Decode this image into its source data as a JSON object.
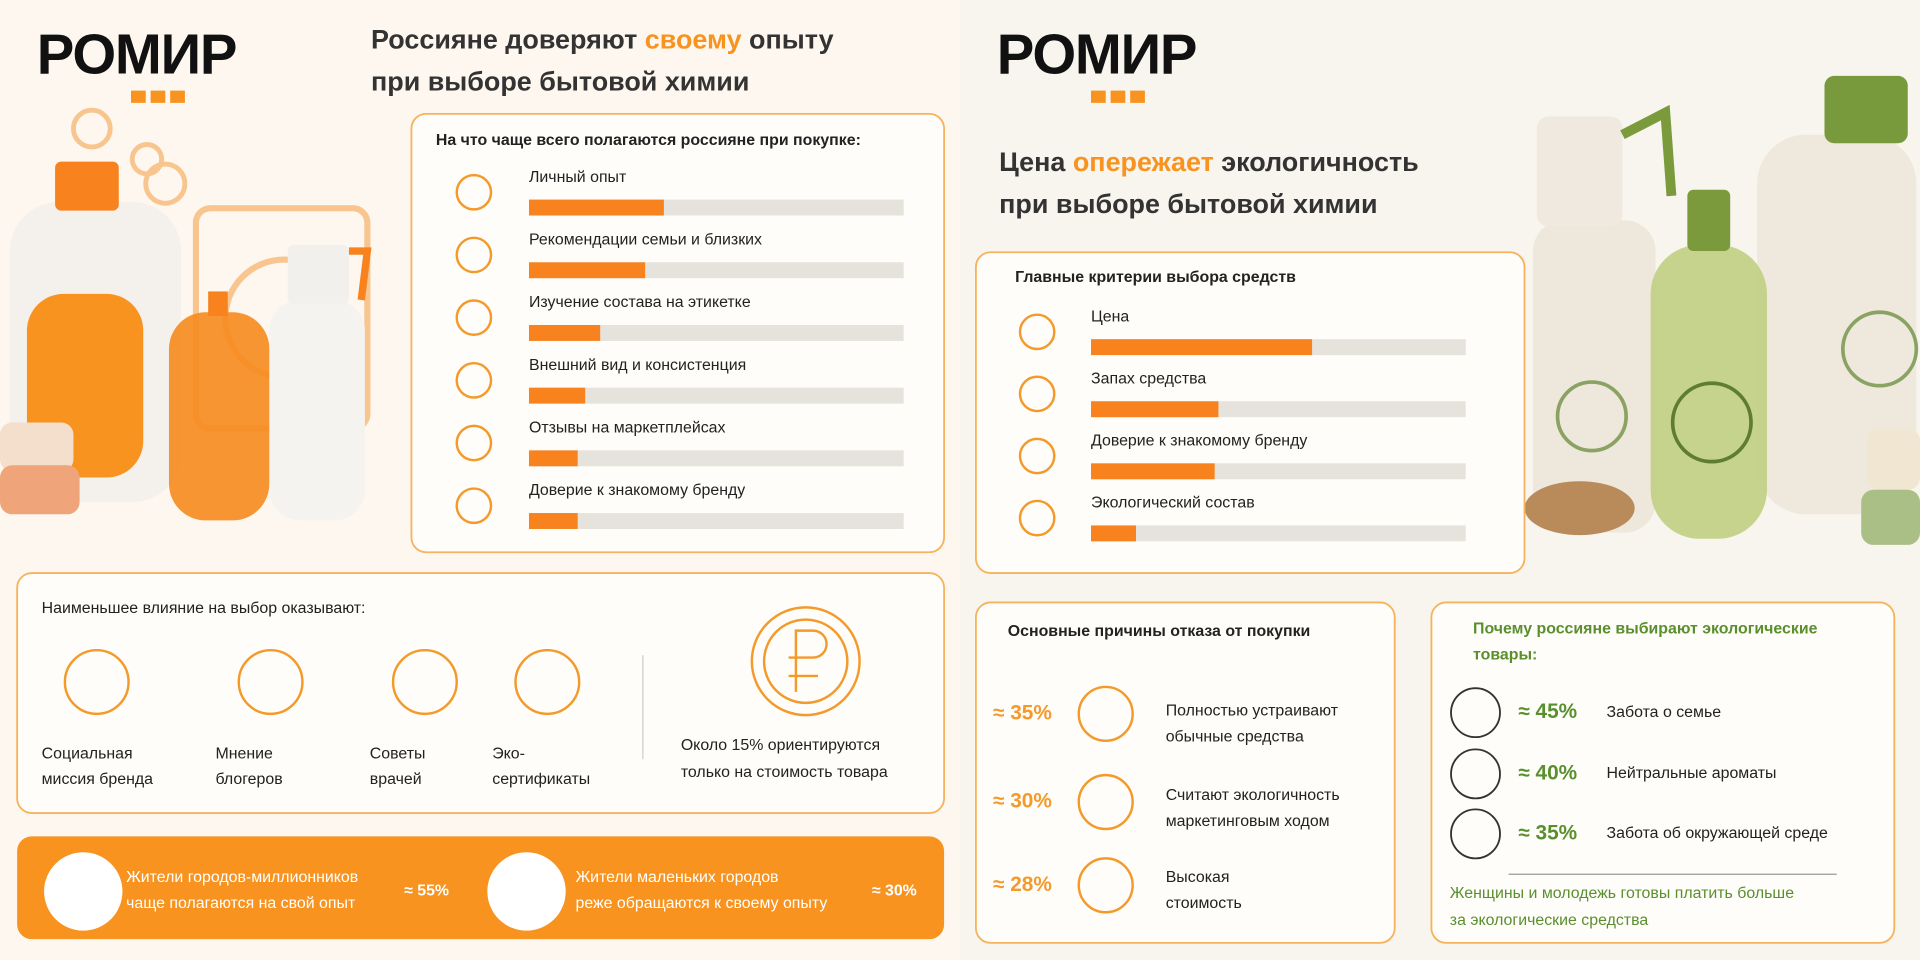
{
  "left": {
    "logo": "РОМИР",
    "title": [
      "Россияне доверяют ",
      "своему",
      " опыту"
    ],
    "title_line2": "при выборе бытовой химии",
    "rely": {
      "title": "На что чаще всего полагаются россияне при покупке:",
      "xlim": [
        0,
        100
      ],
      "items": [
        {
          "label": "Личный опыт",
          "value": 36
        },
        {
          "label": "Рекомендации семьи и близких",
          "value": 31
        },
        {
          "label": "Изучение состава на этикетке",
          "value": 19
        },
        {
          "label": "Внешний вид и консистенция",
          "value": 15
        },
        {
          "label": "Отзывы на маркетплейсах",
          "value": 13
        },
        {
          "label": "Доверие к знакомому бренду",
          "value": 13
        }
      ]
    },
    "least": {
      "title": "Наименьшее влияние на выбор оказывают:",
      "items": [
        [
          "Социальная",
          "миссия бренда"
        ],
        [
          "Мнение",
          "блогеров"
        ],
        [
          "Советы",
          "врачей"
        ],
        [
          "Эко-",
          "сертификаты"
        ]
      ],
      "note": [
        "Около 15% ориентируются",
        "только на стоимость товара"
      ]
    },
    "banner": [
      {
        "text": [
          "Жители городов-миллионников",
          "чаще полагаются на свой опыт"
        ],
        "value": "≈ 55%"
      },
      {
        "text": [
          "Жители маленьких городов",
          "реже обращаются к своему опыту"
        ],
        "value": "≈ 30%"
      }
    ]
  },
  "right": {
    "logo": "РОМИР",
    "title": [
      "Цена ",
      "опережает",
      " экологичность"
    ],
    "title_line2": "при выборе бытовой химии",
    "criteria": {
      "title": "Главные критерии выбора средств",
      "xlim": [
        0,
        100
      ],
      "items": [
        {
          "label": "Цена",
          "value": 59
        },
        {
          "label": "Запах средства",
          "value": 34
        },
        {
          "label": "Доверие к знакомому бренду",
          "value": 33
        },
        {
          "label": "Экологический состав",
          "value": 12
        }
      ]
    },
    "refusal": {
      "title": "Основные причины отказа от покупки",
      "items": [
        {
          "share": "≈ 35%",
          "text": [
            "Полностью устраивают",
            "обычные средства"
          ]
        },
        {
          "share": "≈ 30%",
          "text": [
            "Считают экологичность",
            "маркетинговым ходом"
          ]
        },
        {
          "share": "≈ 28%",
          "text": [
            "Высокая",
            "стоимость"
          ]
        }
      ]
    },
    "eco": {
      "title": [
        "Почему россияне выбирают экологические",
        "товары:"
      ],
      "items": [
        {
          "share": "≈ 45%",
          "text": "Забота о семье"
        },
        {
          "share": "≈ 40%",
          "text": "Нейтральные ароматы"
        },
        {
          "share": "≈ 35%",
          "text": "Забота об окружающей среде"
        }
      ],
      "note": [
        "Женщины и молодежь готовы платить больше",
        "за экологические средства"
      ]
    }
  }
}
